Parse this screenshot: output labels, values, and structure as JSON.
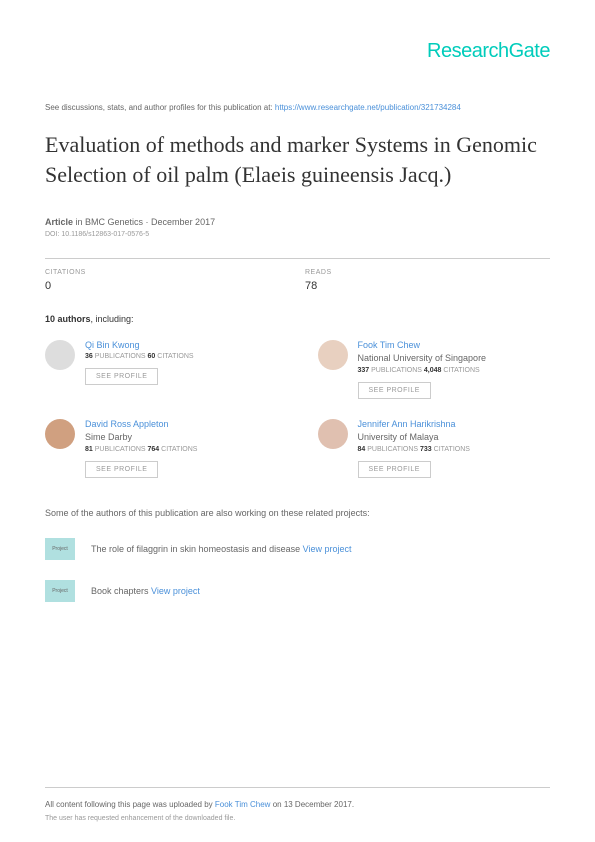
{
  "logo": "ResearchGate",
  "intro": {
    "text": "See discussions, stats, and author profiles for this publication at: ",
    "link": "https://www.researchgate.net/publication/321734284"
  },
  "title": "Evaluation of methods and marker Systems in Genomic Selection of oil palm (Elaeis guineensis Jacq.)",
  "article": {
    "label": "Article",
    "in": " in ",
    "journal": "BMC Genetics · December 2017",
    "doi": "DOI: 10.1186/s12863-017-0576-5"
  },
  "stats": {
    "citations_label": "CITATIONS",
    "citations_value": "0",
    "reads_label": "READS",
    "reads_value": "78"
  },
  "authors_intro": {
    "count": "10 authors",
    "suffix": ", including:"
  },
  "authors": [
    {
      "name": "Qi Bin Kwong",
      "affiliation": "",
      "pubs": "36",
      "pubs_label": " PUBLICATIONS   ",
      "citations": "60",
      "citations_label": " CITATIONS",
      "btn": "SEE PROFILE"
    },
    {
      "name": "Fook Tim Chew",
      "affiliation": "National University of Singapore",
      "pubs": "337",
      "pubs_label": " PUBLICATIONS   ",
      "citations": "4,048",
      "citations_label": " CITATIONS",
      "btn": "SEE PROFILE"
    },
    {
      "name": "David Ross Appleton",
      "affiliation": "Sime Darby",
      "pubs": "81",
      "pubs_label": " PUBLICATIONS   ",
      "citations": "764",
      "citations_label": " CITATIONS",
      "btn": "SEE PROFILE"
    },
    {
      "name": "Jennifer Ann Harikrishna",
      "affiliation": "University of Malaya",
      "pubs": "84",
      "pubs_label": " PUBLICATIONS   ",
      "citations": "733",
      "citations_label": " CITATIONS",
      "btn": "SEE PROFILE"
    }
  ],
  "projects": {
    "intro": "Some of the authors of this publication are also working on these related projects:",
    "icon_label": "Project",
    "items": [
      {
        "text": "The role of filaggrin in skin homeostasis and disease ",
        "link": "View project"
      },
      {
        "text": "Book chapters ",
        "link": "View project"
      }
    ]
  },
  "footer": {
    "line1_prefix": "All content following this page was uploaded by ",
    "line1_author": "Fook Tim Chew",
    "line1_suffix": " on 13 December 2017.",
    "line2": "The user has requested enhancement of the downloaded file."
  }
}
